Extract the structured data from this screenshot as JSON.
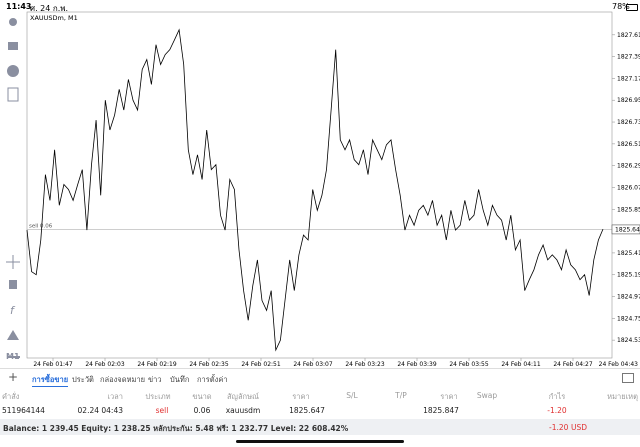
{
  "status_bar": {
    "time": "11:43",
    "date": "ศ. 24 ก.พ.",
    "battery": "78%"
  },
  "chart": {
    "type": "line",
    "symbol": "XAUUSDm, M1",
    "timeframe": "M1",
    "order_label": "sell 0.06",
    "order_price": 1825.647,
    "color": "#000000",
    "ylim": [
      1824.35,
      1827.84
    ],
    "yticks": [
      {
        "value": 1827.61,
        "label": "1827.610"
      },
      {
        "value": 1827.39,
        "label": "1827.390"
      },
      {
        "value": 1827.17,
        "label": "1827.170"
      },
      {
        "value": 1826.95,
        "label": "1826.950"
      },
      {
        "value": 1826.73,
        "label": "1826.730"
      },
      {
        "value": 1826.51,
        "label": "1826.510"
      },
      {
        "value": 1826.29,
        "label": "1826.290"
      },
      {
        "value": 1826.07,
        "label": "1826.070"
      },
      {
        "value": 1825.85,
        "label": "1825.850"
      },
      {
        "value": 1825.41,
        "label": "1825.410"
      },
      {
        "value": 1825.19,
        "label": "1825.190"
      },
      {
        "value": 1824.97,
        "label": "1824.970"
      },
      {
        "value": 1824.75,
        "label": "1824.750"
      },
      {
        "value": 1824.53,
        "label": "1824.530"
      }
    ],
    "x_labels": [
      "24 Feb 01:47",
      "24 Feb 02:03",
      "24 Feb 02:19",
      "24 Feb 02:35",
      "24 Feb 02:51",
      "24 Feb 03:07",
      "24 Feb 03:23",
      "24 Feb 03:39",
      "24 Feb 03:55",
      "24 Feb 04:11",
      "24 Feb 04:27",
      "24 Feb 04:43"
    ],
    "values": [
      1825.64,
      1825.22,
      1825.19,
      1825.54,
      1826.2,
      1825.94,
      1826.45,
      1825.89,
      1826.1,
      1826.05,
      1825.94,
      1826.1,
      1826.25,
      1825.64,
      1826.3,
      1826.75,
      1825.99,
      1826.95,
      1826.65,
      1826.8,
      1827.06,
      1826.85,
      1827.16,
      1826.95,
      1826.85,
      1827.26,
      1827.36,
      1827.11,
      1827.51,
      1827.31,
      1827.41,
      1827.46,
      1827.56,
      1827.66,
      1827.31,
      1826.45,
      1826.2,
      1826.4,
      1826.15,
      1826.65,
      1826.25,
      1826.3,
      1825.79,
      1825.64,
      1826.15,
      1826.05,
      1825.44,
      1825.03,
      1824.73,
      1825.08,
      1825.34,
      1824.93,
      1824.83,
      1825.03,
      1824.43,
      1824.53,
      1824.93,
      1825.34,
      1825.03,
      1825.39,
      1825.59,
      1825.54,
      1826.05,
      1825.84,
      1825.99,
      1826.25,
      1826.85,
      1827.46,
      1826.55,
      1826.45,
      1826.55,
      1826.35,
      1826.3,
      1826.45,
      1826.2,
      1826.55,
      1826.45,
      1826.35,
      1826.5,
      1826.55,
      1826.25,
      1825.99,
      1825.64,
      1825.79,
      1825.69,
      1825.84,
      1825.89,
      1825.79,
      1825.94,
      1825.69,
      1825.79,
      1825.54,
      1825.84,
      1825.64,
      1825.69,
      1825.94,
      1825.74,
      1825.79,
      1826.05,
      1825.84,
      1825.69,
      1825.89,
      1825.79,
      1825.74,
      1825.54,
      1825.79,
      1825.44,
      1825.54,
      1825.03,
      1825.14,
      1825.24,
      1825.39,
      1825.49,
      1825.34,
      1825.39,
      1825.34,
      1825.24,
      1825.44,
      1825.29,
      1825.24,
      1825.14,
      1825.19,
      1824.98,
      1825.34,
      1825.54,
      1825.65
    ]
  },
  "tabs": [
    "การซื้อขาย",
    "ประวัติ",
    "กล่องจดหมาย",
    "ข่าว",
    "บันทึก",
    "การตั้งค่า"
  ],
  "table": {
    "headers": [
      "คำสั่ง",
      "เวลา",
      "ประเภท",
      "ขนาด",
      "สัญลักษณ์",
      "ราคา",
      "S/L",
      "T/P",
      "ราคา",
      "Swap",
      "กำไร",
      "หมายเหตุ"
    ],
    "row": {
      "order": "511964144",
      "time": "02.24 04:43",
      "type": "sell",
      "volume": "0.06",
      "symbol": "xauusdm",
      "price": "1825.647",
      "current_price": "1825.847",
      "profit": "-1.20"
    }
  },
  "footer": {
    "balance": "Balance: 1 239.45 Equity: 1 238.25 หลักประกัน: 5.48 ฟรี: 1 232.77 Level: 22 608.42%",
    "profit": "-1.20",
    "currency": "USD"
  }
}
